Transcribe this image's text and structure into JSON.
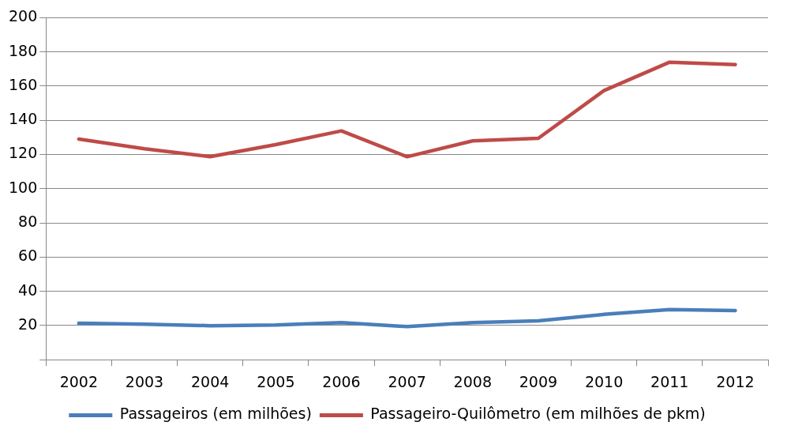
{
  "chart_data": {
    "type": "line",
    "categories": [
      "2002",
      "2003",
      "2004",
      "2005",
      "2006",
      "2007",
      "2008",
      "2009",
      "2010",
      "2011",
      "2012"
    ],
    "series": [
      {
        "name": "Passageiros (em milhões)",
        "color": "#4a7ebb",
        "values": [
          21.3,
          20.8,
          19.9,
          20.3,
          21.7,
          19.4,
          21.7,
          22.7,
          26.5,
          29.3,
          28.8
        ]
      },
      {
        "name": "Passageiro-Quilômetro (em milhões de pkm)",
        "color": "#be4b48",
        "values": [
          129,
          123.4,
          118.7,
          125.8,
          133.8,
          118.7,
          128,
          129.5,
          157.4,
          174,
          172.6
        ]
      }
    ],
    "ylim": [
      0,
      200
    ],
    "yticks": [
      {
        "value": 0,
        "label": null
      },
      20,
      40,
      60,
      80,
      100,
      120,
      140,
      160,
      180,
      200
    ],
    "grid": "y",
    "legend": "bottom",
    "marker": "none",
    "line_style": "solid"
  }
}
